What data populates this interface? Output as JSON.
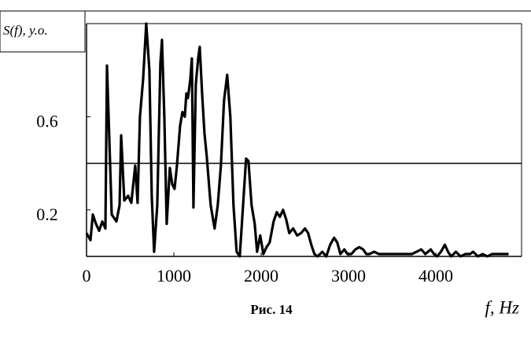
{
  "chart_data": {
    "type": "line",
    "ylabel": "S(f), y.o.",
    "xlabel": "f, Hz",
    "caption": "Рис. 14",
    "color": "#000000",
    "x": [
      0,
      45,
      72,
      108,
      144,
      180,
      216,
      234,
      288,
      342,
      378,
      396,
      432,
      477,
      513,
      558,
      585,
      612,
      648,
      684,
      720,
      747,
      774,
      810,
      846,
      864,
      891,
      918,
      954,
      981,
      1008,
      1035,
      1071,
      1098,
      1125,
      1143,
      1161,
      1188,
      1206,
      1224,
      1251,
      1278,
      1296,
      1323,
      1350,
      1377,
      1422,
      1467,
      1503,
      1539,
      1575,
      1611,
      1647,
      1683,
      1719,
      1755,
      1791,
      1827,
      1854,
      1890,
      1926,
      1953,
      1989,
      2025,
      2061,
      2097,
      2142,
      2178,
      2214,
      2250,
      2286,
      2322,
      2367,
      2412,
      2457,
      2502,
      2538,
      2574,
      2610,
      2646,
      2700,
      2745,
      2790,
      2835,
      2871,
      2907,
      2952,
      2988,
      3033,
      3078,
      3123,
      3168,
      3204,
      3240,
      3294,
      3348,
      3402,
      3456,
      3510,
      3564,
      3618,
      3672,
      3726,
      3780,
      3834,
      3879,
      3942,
      3978,
      4014,
      4059,
      4104,
      4140,
      4176,
      4230,
      4284,
      4338,
      4392,
      4428,
      4482,
      4536,
      4590,
      4644,
      4716,
      4770,
      4833
    ],
    "values": [
      0.1,
      0.07,
      0.18,
      0.14,
      0.11,
      0.15,
      0.12,
      0.82,
      0.18,
      0.15,
      0.22,
      0.52,
      0.24,
      0.26,
      0.23,
      0.39,
      0.23,
      0.6,
      0.76,
      1.0,
      0.8,
      0.26,
      0.02,
      0.22,
      0.83,
      0.93,
      0.6,
      0.14,
      0.38,
      0.31,
      0.29,
      0.39,
      0.56,
      0.62,
      0.6,
      0.7,
      0.68,
      0.76,
      0.85,
      0.21,
      0.74,
      0.85,
      0.9,
      0.7,
      0.53,
      0.43,
      0.22,
      0.12,
      0.22,
      0.39,
      0.67,
      0.78,
      0.6,
      0.22,
      0.02,
      0,
      0.21,
      0.42,
      0.41,
      0.22,
      0.14,
      0.02,
      0.09,
      0.01,
      0.04,
      0.06,
      0.15,
      0.19,
      0.17,
      0.2,
      0.16,
      0.1,
      0.12,
      0.09,
      0.1,
      0.12,
      0.1,
      0.05,
      0.01,
      0,
      0.02,
      0,
      0.05,
      0.08,
      0.06,
      0.01,
      0.03,
      0.01,
      0.01,
      0.03,
      0.04,
      0.03,
      0.01,
      0.01,
      0.02,
      0.01,
      0.01,
      0.01,
      0.01,
      0.01,
      0.01,
      0.01,
      0.01,
      0.02,
      0.03,
      0.01,
      0.03,
      0.01,
      0,
      0.02,
      0.05,
      0.02,
      0,
      0.02,
      0,
      0.01,
      0.01,
      0.02,
      0,
      0.01,
      0,
      0.01,
      0.01,
      0.01,
      0.01
    ],
    "xlim": [
      0,
      5000
    ],
    "xticks": [
      0,
      1000,
      2000,
      3000,
      4000
    ],
    "ylim": [
      0,
      1
    ],
    "yticks": [
      0.2,
      0.6
    ],
    "hline": 0.4
  }
}
